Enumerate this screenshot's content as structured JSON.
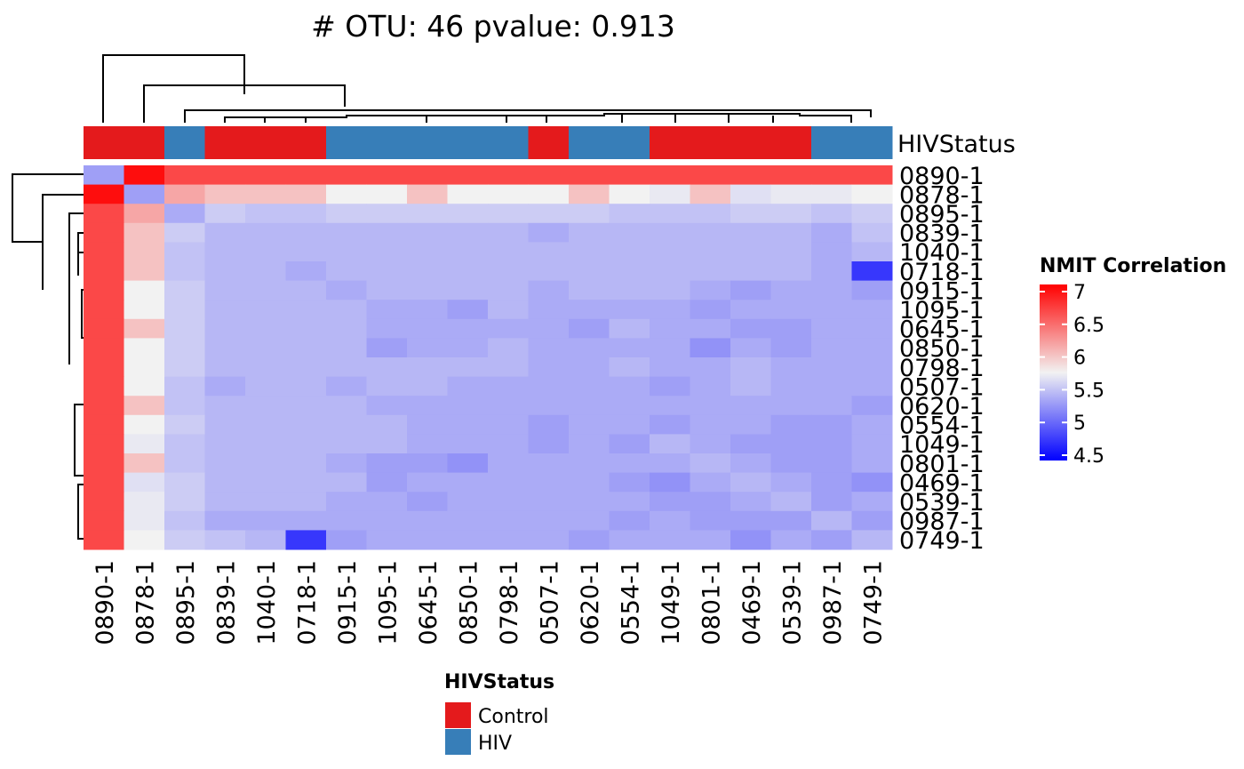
{
  "chart_data": {
    "type": "heatmap",
    "title": "# OTU: 46 pvalue: 0.913",
    "samples": [
      "0890-1",
      "0878-1",
      "0895-1",
      "0839-1",
      "1040-1",
      "0718-1",
      "0915-1",
      "1095-1",
      "0645-1",
      "0850-1",
      "0798-1",
      "0507-1",
      "0620-1",
      "0554-1",
      "1049-1",
      "0801-1",
      "0469-1",
      "0539-1",
      "0987-1",
      "0749-1"
    ],
    "annotation": {
      "name": "HIVStatus",
      "values": [
        "Control",
        "Control",
        "HIV",
        "Control",
        "Control",
        "Control",
        "HIV",
        "HIV",
        "HIV",
        "HIV",
        "HIV",
        "Control",
        "HIV",
        "HIV",
        "Control",
        "Control",
        "Control",
        "Control",
        "HIV",
        "HIV"
      ],
      "legend_title": "HIVStatus",
      "levels": [
        {
          "label": "Control",
          "color": "#E41A1C"
        },
        {
          "label": "HIV",
          "color": "#377EB8"
        }
      ]
    },
    "color_scale": {
      "title": "NMIT Correlation",
      "low": "#0000FF",
      "mid": "#F2F2F2",
      "high": "#FF0000",
      "range": [
        4.4,
        7.1
      ],
      "midpoint": 5.9,
      "ticks": [
        "7",
        "6.5",
        "6",
        "5.5",
        "5",
        "4.5"
      ],
      "tick_values": [
        7,
        6.5,
        6,
        5.5,
        5,
        4.5
      ]
    },
    "values": [
      [
        5.1,
        7.0,
        6.6,
        6.6,
        6.6,
        6.6,
        6.6,
        6.6,
        6.6,
        6.6,
        6.6,
        6.6,
        6.6,
        6.6,
        6.6,
        6.6,
        6.6,
        6.6,
        6.6,
        6.6
      ],
      [
        7.0,
        5.1,
        6.1,
        6.0,
        6.0,
        6.0,
        5.9,
        5.9,
        6.0,
        5.9,
        5.9,
        5.9,
        6.0,
        5.9,
        5.8,
        6.0,
        5.7,
        5.8,
        5.8,
        5.9
      ],
      [
        6.6,
        6.1,
        5.2,
        5.5,
        5.4,
        5.4,
        5.5,
        5.5,
        5.5,
        5.5,
        5.5,
        5.5,
        5.5,
        5.4,
        5.4,
        5.4,
        5.5,
        5.5,
        5.4,
        5.5
      ],
      [
        6.6,
        6.0,
        5.5,
        5.3,
        5.3,
        5.3,
        5.3,
        5.3,
        5.3,
        5.3,
        5.3,
        5.2,
        5.3,
        5.3,
        5.3,
        5.3,
        5.3,
        5.3,
        5.2,
        5.4
      ],
      [
        6.6,
        6.0,
        5.4,
        5.3,
        5.3,
        5.3,
        5.3,
        5.3,
        5.3,
        5.3,
        5.3,
        5.3,
        5.3,
        5.3,
        5.3,
        5.3,
        5.3,
        5.3,
        5.2,
        5.3
      ],
      [
        6.6,
        6.0,
        5.4,
        5.3,
        5.3,
        5.2,
        5.3,
        5.3,
        5.3,
        5.3,
        5.3,
        5.3,
        5.3,
        5.3,
        5.3,
        5.3,
        5.3,
        5.3,
        5.2,
        4.5
      ],
      [
        6.6,
        5.9,
        5.5,
        5.3,
        5.3,
        5.3,
        5.2,
        5.3,
        5.3,
        5.3,
        5.3,
        5.2,
        5.3,
        5.3,
        5.3,
        5.2,
        5.1,
        5.2,
        5.2,
        5.1
      ],
      [
        6.6,
        5.9,
        5.5,
        5.3,
        5.3,
        5.3,
        5.3,
        5.2,
        5.2,
        5.1,
        5.3,
        5.2,
        5.2,
        5.2,
        5.2,
        5.1,
        5.2,
        5.2,
        5.2,
        5.2
      ],
      [
        6.6,
        6.0,
        5.5,
        5.3,
        5.3,
        5.3,
        5.3,
        5.2,
        5.2,
        5.2,
        5.2,
        5.2,
        5.1,
        5.3,
        5.2,
        5.2,
        5.1,
        5.1,
        5.2,
        5.2
      ],
      [
        6.6,
        5.9,
        5.5,
        5.3,
        5.3,
        5.3,
        5.3,
        5.1,
        5.2,
        5.2,
        5.3,
        5.2,
        5.2,
        5.2,
        5.2,
        5.0,
        5.2,
        5.1,
        5.2,
        5.2
      ],
      [
        6.6,
        5.9,
        5.5,
        5.3,
        5.3,
        5.3,
        5.3,
        5.3,
        5.3,
        5.3,
        5.3,
        5.2,
        5.2,
        5.3,
        5.2,
        5.2,
        5.3,
        5.2,
        5.2,
        5.2
      ],
      [
        6.6,
        5.9,
        5.4,
        5.2,
        5.3,
        5.3,
        5.2,
        5.3,
        5.3,
        5.2,
        5.2,
        5.2,
        5.2,
        5.2,
        5.1,
        5.2,
        5.3,
        5.2,
        5.2,
        5.2
      ],
      [
        6.6,
        6.0,
        5.4,
        5.3,
        5.3,
        5.3,
        5.3,
        5.2,
        5.2,
        5.2,
        5.2,
        5.2,
        5.2,
        5.2,
        5.2,
        5.2,
        5.2,
        5.2,
        5.2,
        5.1
      ],
      [
        6.6,
        5.9,
        5.5,
        5.3,
        5.3,
        5.3,
        5.3,
        5.3,
        5.2,
        5.2,
        5.2,
        5.1,
        5.2,
        5.2,
        5.1,
        5.2,
        5.2,
        5.1,
        5.1,
        5.2
      ],
      [
        6.6,
        5.8,
        5.4,
        5.3,
        5.3,
        5.3,
        5.3,
        5.3,
        5.2,
        5.2,
        5.2,
        5.1,
        5.2,
        5.1,
        5.3,
        5.2,
        5.1,
        5.1,
        5.1,
        5.2
      ],
      [
        6.6,
        6.0,
        5.4,
        5.3,
        5.3,
        5.3,
        5.2,
        5.1,
        5.1,
        5.0,
        5.2,
        5.2,
        5.2,
        5.2,
        5.2,
        5.3,
        5.2,
        5.1,
        5.1,
        5.2
      ],
      [
        6.6,
        5.7,
        5.5,
        5.3,
        5.3,
        5.3,
        5.3,
        5.1,
        5.2,
        5.2,
        5.2,
        5.2,
        5.2,
        5.1,
        5.0,
        5.2,
        5.3,
        5.2,
        5.1,
        5.0
      ],
      [
        6.6,
        5.8,
        5.5,
        5.3,
        5.3,
        5.3,
        5.2,
        5.2,
        5.1,
        5.2,
        5.2,
        5.2,
        5.2,
        5.2,
        5.1,
        5.1,
        5.2,
        5.3,
        5.1,
        5.2
      ],
      [
        6.6,
        5.8,
        5.4,
        5.2,
        5.2,
        5.2,
        5.2,
        5.2,
        5.2,
        5.2,
        5.2,
        5.2,
        5.2,
        5.1,
        5.2,
        5.1,
        5.1,
        5.1,
        5.3,
        5.1
      ],
      [
        6.6,
        5.9,
        5.5,
        5.4,
        5.3,
        4.5,
        5.1,
        5.2,
        5.2,
        5.2,
        5.2,
        5.2,
        5.1,
        5.2,
        5.2,
        5.2,
        5.0,
        5.2,
        5.1,
        5.3
      ]
    ]
  }
}
